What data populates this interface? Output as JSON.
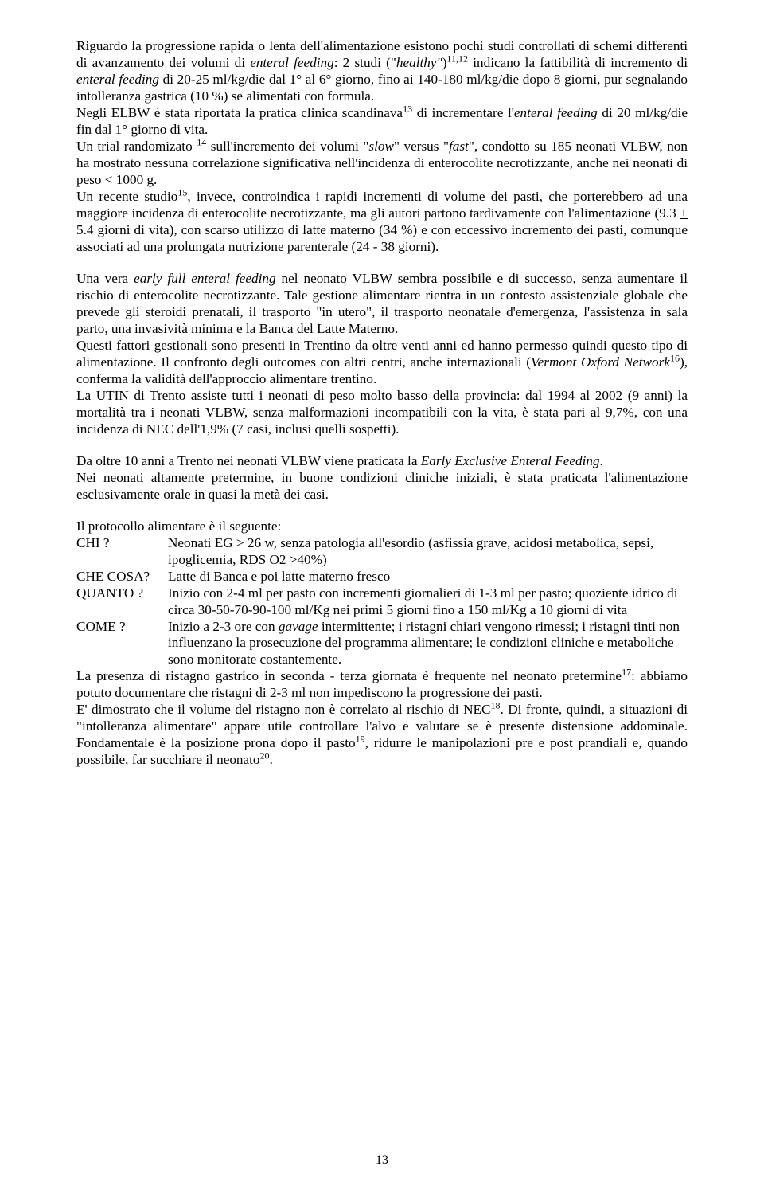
{
  "p1": {
    "t1": "Riguardo la progressione rapida o lenta dell'alimentazione esistono pochi studi controllati di schemi differenti di avanzamento dei volumi di ",
    "i1": "enteral feeding",
    "t2": ": 2 studi (\"",
    "i2": "healthy\"",
    "t3": ")",
    "s1": "11,12",
    "t4": " indicano la fattibilità di incremento di ",
    "i3": "enteral feeding",
    "t5": " di 20-25 ml/kg/die dal 1° al 6° giorno, fino ai 140-180 ml/kg/die dopo 8 giorni, pur segnalando intolleranza gastrica (10 %) se alimentati con formula."
  },
  "p2": {
    "t1": "Negli ELBW è stata riportata la pratica clinica scandinava",
    "s1": "13",
    "t2": " di incrementare l'",
    "i1": "enteral feeding",
    "t3": " di 20 ml/kg/die fin dal 1° giorno di vita."
  },
  "p3": {
    "t1": "Un trial randomizato ",
    "s1": "14",
    "t2": " sull'incremento dei volumi \"",
    "i1": "slow",
    "t3": "\" versus \"",
    "i2": "fast",
    "t4": "\", condotto su 185 neonati VLBW, non ha mostrato nessuna correlazione significativa nell'incidenza di enterocolite necrotizzante, anche nei neonati di peso < 1000 g."
  },
  "p4": {
    "t1": "Un recente studio",
    "s1": "15",
    "t2": ", invece, controindica i rapidi incrementi di volume dei pasti, che porterebbero ad una maggiore incidenza di enterocolite necrotizzante, ma gli autori partono tardivamente con l'alimentazione (9.3 ",
    "u1": "+",
    "t3": " 5.4 giorni di vita), con scarso utilizzo di latte materno (34 %) e con eccessivo incremento dei pasti, comunque associati ad una prolungata nutrizione parenterale (24 - 38 giorni)."
  },
  "p5": {
    "t1": "Una vera ",
    "i1": "early full enteral feeding",
    "t2": " nel neonato VLBW sembra possibile e di successo, senza aumentare il rischio di enterocolite necrotizzante. Tale gestione alimentare rientra in un contesto assistenziale globale che prevede gli steroidi prenatali, il trasporto \"in utero\", il trasporto neonatale d'emergenza, l'assistenza in sala parto, una invasività minima e la Banca del Latte Materno."
  },
  "p6": {
    "t1": "Questi fattori gestionali sono presenti in Trentino da oltre venti anni ed hanno permesso quindi questo tipo di alimentazione. Il confronto degli outcomes con altri centri, anche internazionali (",
    "i1": "Vermont Oxford Network",
    "s1": "16",
    "t2": "), conferma la validità dell'approccio alimentare trentino."
  },
  "p7": {
    "t1": "La UTIN di Trento assiste tutti i neonati di peso molto basso della provincia: dal 1994 al 2002 (9 anni) la mortalità tra i neonati VLBW, senza malformazioni incompatibili con la vita, è stata pari al 9,7%, con una incidenza di NEC dell'1,9% (7 casi, inclusi quelli sospetti)."
  },
  "p8": {
    "t1": "Da oltre 10 anni a Trento nei neonati VLBW viene praticata la ",
    "i1": "Early Exclusive Enteral Feeding",
    "t2": "."
  },
  "p9": "Nei neonati altamente pretermine, in buone condizioni cliniche iniziali, è stata praticata l'alimentazione esclusivamente orale in quasi la metà dei casi.",
  "proto_intro": "Il protocollo alimentare è il seguente:",
  "chi": {
    "label": "CHI ?",
    "text": "Neonati EG > 26 w, senza patologia all'esordio (asfissia grave, acidosi metabolica,  sepsi, ipoglicemia, RDS O2 >40%)"
  },
  "checosa": {
    "label": "CHE COSA?",
    "text": "Latte di Banca e poi latte materno fresco"
  },
  "quanto": {
    "label": "QUANTO ?",
    "text": "Inizio con 2-4 ml per pasto con incrementi giornalieri di 1-3 ml per pasto; quoziente idrico di circa 30-50-70-90-100 ml/Kg nei primi 5 giorni fino a 150 ml/Kg a 10 giorni di vita"
  },
  "come": {
    "label": "COME ?",
    "t1": "Inizio a 2-3 ore con ",
    "i1": "gavage",
    "t2": " intermittente; i ristagni chiari vengono rimessi; i ristagni tinti non influenzano la prosecuzione del programma alimentare; le condizioni cliniche e metaboliche sono monitorate costantemente."
  },
  "p10": {
    "t1": "La presenza di ristagno gastrico in seconda - terza giornata è frequente nel neonato pretermine",
    "s1": "17",
    "t2": ": abbiamo potuto documentare che ristagni di 2-3 ml non impediscono la progressione dei pasti."
  },
  "p11": {
    "t1": "E' dimostrato che il volume del ristagno non è correlato al rischio di NEC",
    "s1": "18",
    "t2": ". Di fronte, quindi, a situazioni di \"intolleranza alimentare\" appare utile controllare l'alvo e valutare se è presente distensione addominale. Fondamentale è la posizione prona dopo il pasto",
    "s2": "19",
    "t3": ", ridurre le manipolazioni pre e post prandiali e, quando possibile, far succhiare il neonato",
    "s3": "20",
    "t4": "."
  },
  "page_number": "13"
}
